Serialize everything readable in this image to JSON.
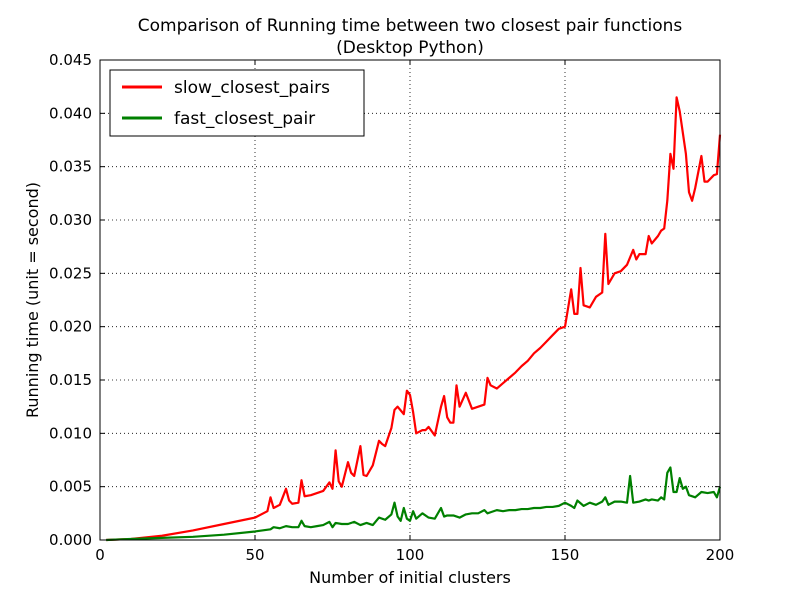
{
  "chart_data": {
    "type": "line",
    "title": "Comparison of Running time between two closest pair functions",
    "subtitle": "(Desktop Python)",
    "xlabel": "Number of initial clusters",
    "ylabel": "Running time (unit = second)",
    "xlim": [
      0,
      200
    ],
    "ylim": [
      0,
      0.045
    ],
    "grid": true,
    "legend_position": "top-left",
    "x_ticks": [
      "0",
      "50",
      "100",
      "150",
      "200"
    ],
    "y_ticks": [
      "0.000",
      "0.005",
      "0.010",
      "0.015",
      "0.020",
      "0.025",
      "0.030",
      "0.035",
      "0.040",
      "0.045"
    ],
    "series": [
      {
        "name": "slow_closest_pairs",
        "color": "#ff0000",
        "x": [
          2,
          10,
          20,
          30,
          40,
          50,
          54,
          55,
          56,
          58,
          60,
          61,
          62,
          64,
          65,
          66,
          68,
          70,
          72,
          74,
          75,
          76,
          77,
          78,
          80,
          81,
          82,
          84,
          85,
          86,
          88,
          90,
          91,
          92,
          94,
          95,
          96,
          98,
          99,
          100,
          101,
          102,
          104,
          105,
          106,
          108,
          110,
          111,
          112,
          113,
          114,
          115,
          116,
          118,
          120,
          124,
          125,
          126,
          128,
          130,
          132,
          134,
          136,
          138,
          140,
          142,
          144,
          146,
          148,
          150,
          152,
          153,
          154,
          155,
          156,
          158,
          160,
          162,
          163,
          164,
          166,
          168,
          170,
          172,
          173,
          174,
          176,
          177,
          178,
          180,
          181,
          182,
          183,
          184,
          185,
          186,
          187,
          188,
          189,
          190,
          191,
          192,
          194,
          195,
          196,
          198,
          199,
          200
        ],
        "y": [
          0.0,
          0.0001,
          0.0004,
          0.0009,
          0.0015,
          0.0021,
          0.0027,
          0.004,
          0.003,
          0.0033,
          0.0048,
          0.0037,
          0.0034,
          0.0035,
          0.0056,
          0.0041,
          0.0042,
          0.0044,
          0.0046,
          0.0054,
          0.0048,
          0.0084,
          0.0055,
          0.005,
          0.0073,
          0.0063,
          0.006,
          0.0088,
          0.0061,
          0.006,
          0.007,
          0.0093,
          0.009,
          0.0088,
          0.0105,
          0.0122,
          0.0125,
          0.0118,
          0.014,
          0.0136,
          0.012,
          0.01,
          0.0103,
          0.0103,
          0.0106,
          0.0098,
          0.0125,
          0.0135,
          0.0115,
          0.011,
          0.011,
          0.0145,
          0.0125,
          0.0138,
          0.0123,
          0.0127,
          0.0152,
          0.0145,
          0.0142,
          0.0147,
          0.0152,
          0.0157,
          0.0163,
          0.0168,
          0.0175,
          0.018,
          0.0186,
          0.0192,
          0.0198,
          0.02,
          0.0235,
          0.0212,
          0.0212,
          0.0255,
          0.022,
          0.0218,
          0.0228,
          0.0232,
          0.0287,
          0.024,
          0.025,
          0.0252,
          0.0258,
          0.0272,
          0.0263,
          0.0268,
          0.0268,
          0.0285,
          0.0278,
          0.0285,
          0.029,
          0.0292,
          0.0318,
          0.0362,
          0.0348,
          0.0415,
          0.0402,
          0.0382,
          0.0362,
          0.0326,
          0.0318,
          0.033,
          0.036,
          0.0336,
          0.0336,
          0.0342,
          0.0343,
          0.038
        ]
      },
      {
        "name": "fast_closest_pair",
        "color": "#008000",
        "x": [
          2,
          10,
          20,
          30,
          40,
          50,
          55,
          56,
          58,
          60,
          62,
          64,
          65,
          66,
          68,
          70,
          72,
          74,
          75,
          76,
          78,
          80,
          82,
          84,
          86,
          88,
          90,
          92,
          94,
          95,
          96,
          97,
          98,
          99,
          100,
          101,
          102,
          104,
          106,
          108,
          110,
          111,
          112,
          114,
          116,
          118,
          120,
          122,
          124,
          125,
          126,
          128,
          130,
          132,
          134,
          136,
          138,
          140,
          142,
          144,
          146,
          148,
          150,
          152,
          153,
          154,
          156,
          158,
          160,
          162,
          163,
          164,
          166,
          168,
          170,
          171,
          172,
          174,
          176,
          177,
          178,
          180,
          181,
          182,
          183,
          184,
          185,
          186,
          187,
          188,
          189,
          190,
          192,
          194,
          196,
          198,
          199,
          200
        ],
        "y": [
          0.0,
          0.0001,
          0.0002,
          0.0003,
          0.0005,
          0.0008,
          0.001,
          0.0012,
          0.0011,
          0.0013,
          0.0012,
          0.0012,
          0.0018,
          0.0013,
          0.0012,
          0.0013,
          0.0014,
          0.0017,
          0.0012,
          0.0016,
          0.0015,
          0.0015,
          0.0017,
          0.0014,
          0.0016,
          0.0014,
          0.0021,
          0.0019,
          0.0024,
          0.0035,
          0.0022,
          0.0018,
          0.003,
          0.002,
          0.0018,
          0.0027,
          0.002,
          0.0025,
          0.0021,
          0.002,
          0.003,
          0.0022,
          0.0023,
          0.0023,
          0.0021,
          0.0024,
          0.0025,
          0.0025,
          0.0028,
          0.0025,
          0.0026,
          0.0028,
          0.0027,
          0.0028,
          0.0028,
          0.0029,
          0.0029,
          0.003,
          0.003,
          0.0031,
          0.0031,
          0.0032,
          0.0035,
          0.0032,
          0.003,
          0.0037,
          0.0032,
          0.0035,
          0.0033,
          0.0036,
          0.004,
          0.0033,
          0.0036,
          0.0036,
          0.0035,
          0.006,
          0.0035,
          0.0036,
          0.0038,
          0.0037,
          0.0038,
          0.0037,
          0.004,
          0.0038,
          0.0063,
          0.0068,
          0.0045,
          0.0045,
          0.0058,
          0.0048,
          0.005,
          0.0042,
          0.004,
          0.0045,
          0.0044,
          0.0045,
          0.004,
          0.005
        ]
      }
    ]
  }
}
